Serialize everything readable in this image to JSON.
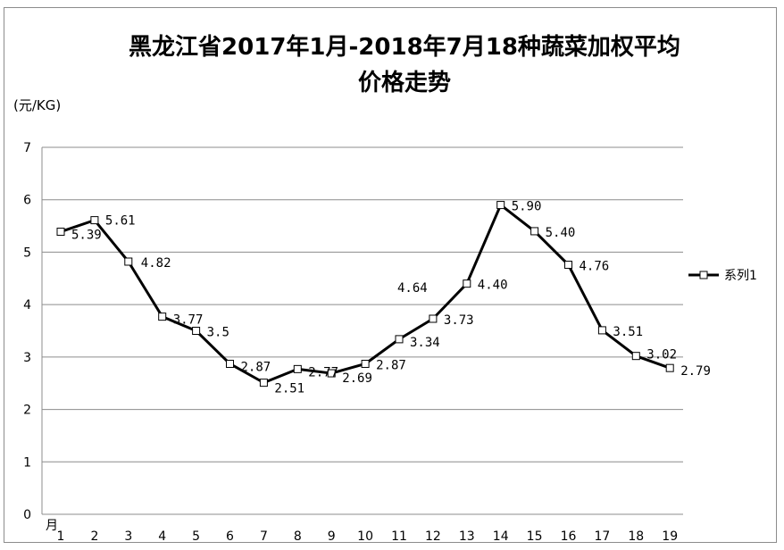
{
  "chart_data": {
    "type": "line",
    "title_line1": "黑龙江省2017年1月-2018年7月18种蔬菜加权平均",
    "title_line2": "价格走势",
    "ylabel": "(元/KG)",
    "xlabel": "月",
    "ylim": [
      0,
      7
    ],
    "yticks": [
      "0",
      "1",
      "2",
      "3",
      "4",
      "5",
      "6",
      "7"
    ],
    "categories": [
      "1",
      "2",
      "3",
      "4",
      "5",
      "6",
      "7",
      "8",
      "9",
      "10",
      "11",
      "12",
      "13",
      "14",
      "15",
      "16",
      "17",
      "18",
      "19"
    ],
    "series": [
      {
        "name": "系列1",
        "values": [
          5.39,
          5.61,
          4.82,
          3.77,
          3.5,
          2.87,
          2.51,
          2.77,
          2.69,
          2.87,
          3.34,
          3.73,
          4.4,
          5.9,
          5.4,
          4.76,
          3.51,
          3.02,
          2.79
        ],
        "labels": [
          "5.39",
          "5.61",
          "4.82",
          "3.77",
          "3.5",
          "2.87",
          "2.51",
          "2.77",
          "2.69",
          "2.87",
          "3.34",
          "3.73",
          "4.40",
          "5.90",
          "5.40",
          "4.76",
          "3.51",
          "3.02",
          "2.79"
        ]
      }
    ],
    "annotation": "4.64",
    "grid": true,
    "legend_position": "right",
    "line_color": "#000000"
  }
}
